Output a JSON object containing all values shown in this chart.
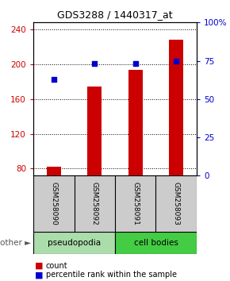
{
  "title": "GDS3288 / 1440317_at",
  "samples": [
    "GSM258090",
    "GSM258092",
    "GSM258091",
    "GSM258093"
  ],
  "groups": [
    "pseudopodia",
    "pseudopodia",
    "cell bodies",
    "cell bodies"
  ],
  "counts": [
    82,
    174,
    194,
    228
  ],
  "percentile_ranks": [
    63,
    73,
    73,
    75
  ],
  "ylim_left": [
    72,
    248
  ],
  "ylim_right": [
    0,
    100
  ],
  "yticks_left": [
    80,
    120,
    160,
    200,
    240
  ],
  "yticks_right": [
    0,
    25,
    50,
    75,
    100
  ],
  "bar_color": "#cc0000",
  "dot_color": "#0000cc",
  "left_tick_color": "#cc0000",
  "right_tick_color": "#0000cc",
  "bar_width": 0.35,
  "dot_size": 25,
  "grid_color": "#000000",
  "background_color": "#ffffff",
  "pseudopodia_color": "#aaddaa",
  "cell_bodies_color": "#44cc44",
  "sample_box_color": "#cccccc",
  "groups_info": [
    {
      "label": "pseudopodia",
      "indices": [
        0,
        1
      ]
    },
    {
      "label": "cell bodies",
      "indices": [
        2,
        3
      ]
    }
  ]
}
